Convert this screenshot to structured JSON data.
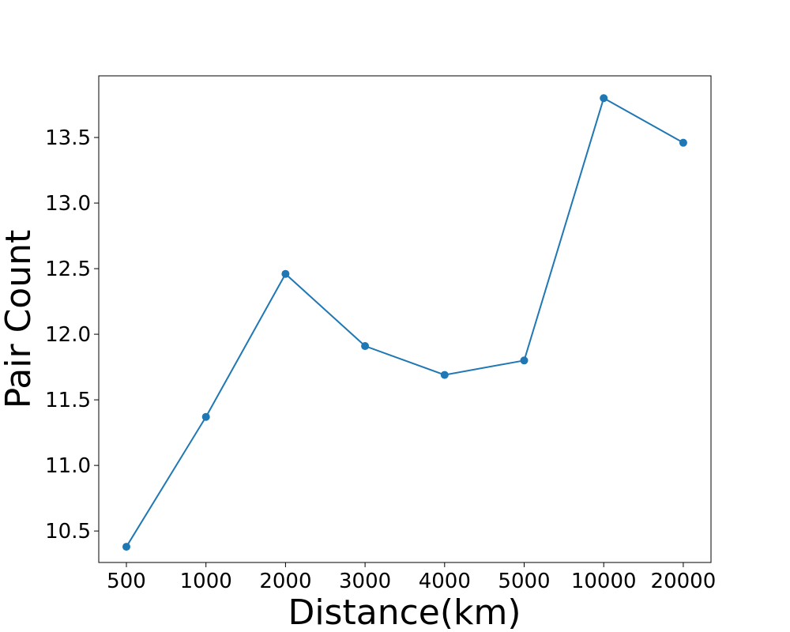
{
  "chart_data": {
    "type": "line",
    "title": "",
    "xlabel": "Distance(km)",
    "ylabel": "Pair Count",
    "categories": [
      "500",
      "1000",
      "2000",
      "3000",
      "4000",
      "5000",
      "10000",
      "20000"
    ],
    "series": [
      {
        "values": [
          10.38,
          11.37,
          12.46,
          11.91,
          11.69,
          11.8,
          13.8,
          13.46
        ],
        "color": "#1f77b4",
        "marker": "circle"
      }
    ],
    "ylim": [
      10.26,
      13.97
    ],
    "yticks": [
      "10.5",
      "11.0",
      "11.5",
      "12.0",
      "12.5",
      "13.0",
      "13.5"
    ],
    "grid": false,
    "legend": "none"
  }
}
